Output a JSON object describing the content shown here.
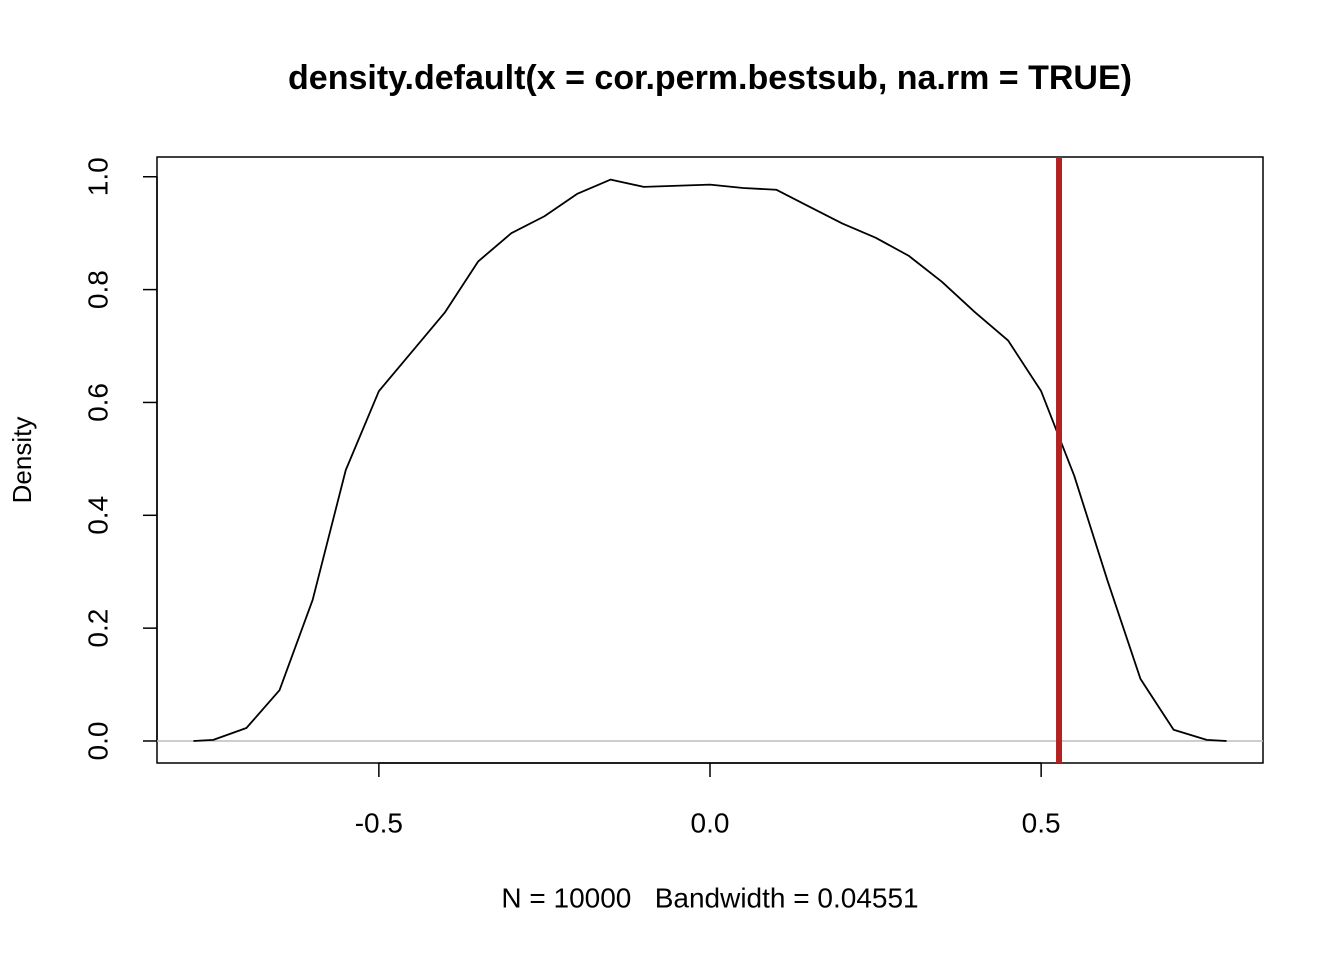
{
  "chart_data": {
    "type": "line",
    "title": "density.default(x = cor.perm.bestsub, na.rm = TRUE)",
    "xlabel": "N = 10000   Bandwidth = 0.04551",
    "ylabel": "Density",
    "x": [
      -0.78,
      -0.75,
      -0.7,
      -0.65,
      -0.6,
      -0.55,
      -0.5,
      -0.45,
      -0.4,
      -0.35,
      -0.3,
      -0.25,
      -0.2,
      -0.15,
      -0.1,
      -0.05,
      0.0,
      0.05,
      0.1,
      0.15,
      0.2,
      0.25,
      0.3,
      0.35,
      0.4,
      0.45,
      0.5,
      0.55,
      0.6,
      0.65,
      0.7,
      0.75,
      0.78
    ],
    "series": [
      {
        "color": "#000000",
        "values": [
          0.0,
          0.002,
          0.023,
          0.09,
          0.25,
          0.48,
          0.62,
          0.69,
          0.76,
          0.85,
          0.9,
          0.93,
          0.97,
          0.995,
          0.982,
          0.984,
          0.986,
          0.98,
          0.977,
          0.947,
          0.917,
          0.892,
          0.86,
          0.814,
          0.76,
          0.71,
          0.62,
          0.47,
          0.285,
          0.11,
          0.02,
          0.002,
          0.0
        ]
      }
    ],
    "xlim": [
      -0.835,
      0.835
    ],
    "ylim": [
      -0.039,
      1.035
    ],
    "xticks": [
      -0.5,
      {
        "value": 0,
        "label": "0.0"
      },
      0.5
    ],
    "yticks": [
      {
        "value": 0,
        "label": "0.0"
      },
      0.2,
      0.4,
      0.6,
      0.8,
      {
        "value": 1,
        "label": "1.0"
      }
    ],
    "baseline": {
      "y": 0,
      "color": "#bebebe"
    },
    "vline": {
      "x": 0.527,
      "color": "#b22222"
    }
  }
}
